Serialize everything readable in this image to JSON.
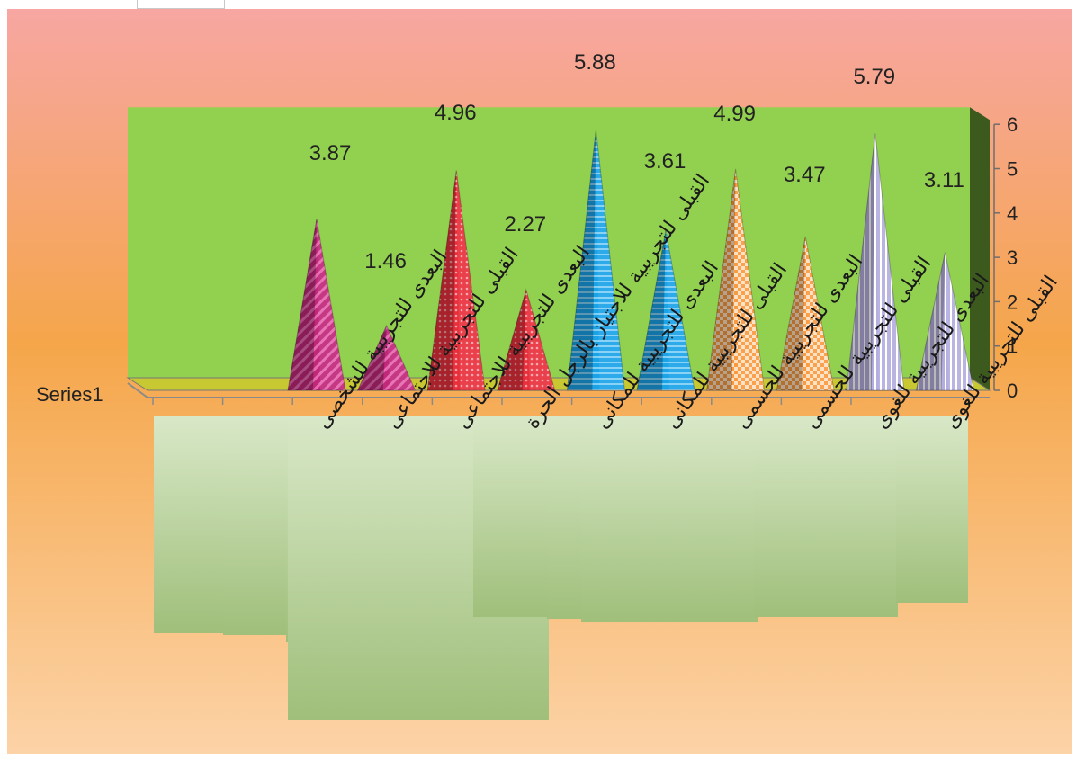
{
  "chart_data": {
    "type": "bar",
    "subtype": "3d-pyramid",
    "series": [
      {
        "name": "Series1",
        "values": [
          3.87,
          1.46,
          4.96,
          2.27,
          5.88,
          3.61,
          4.99,
          3.47,
          5.79,
          3.11
        ]
      }
    ],
    "categories": [
      "البعدى للتجريبية للشخصى",
      "القبلى للتجريبية للاجتماعى",
      "البعدى للتجريبية للاجتماعى",
      "القبلى للتجريبية للاجتياز بالرجل الحرة",
      "البعدى للتجريبية للمكانى",
      "القبلى للتجريبية للمكانى",
      "البعدى للتجريبية للجسمى",
      "القبلى للتجريبية للجسمى",
      "البعدى للتجريبية للغوى",
      "القبلى للتجريبية للغوى"
    ],
    "yticks": [
      "0",
      "1",
      "2",
      "3",
      "4",
      "5",
      "6"
    ],
    "ylim": [
      0,
      6
    ],
    "yaxis_position": "right",
    "legend": "none",
    "colors": {
      "background_top": "#f7a6a2",
      "background_mid": "#f5a64a",
      "background_bottom": "#fcd3a7",
      "wall": "#92d050",
      "wall_side": "#3d5a1e",
      "floor": "#c8c832",
      "label_box": "#c5dcaa",
      "pairs": [
        "#c0287a",
        "#e8303c",
        "#1ba3e8",
        "#f99a40",
        "#b4aee0"
      ]
    }
  }
}
